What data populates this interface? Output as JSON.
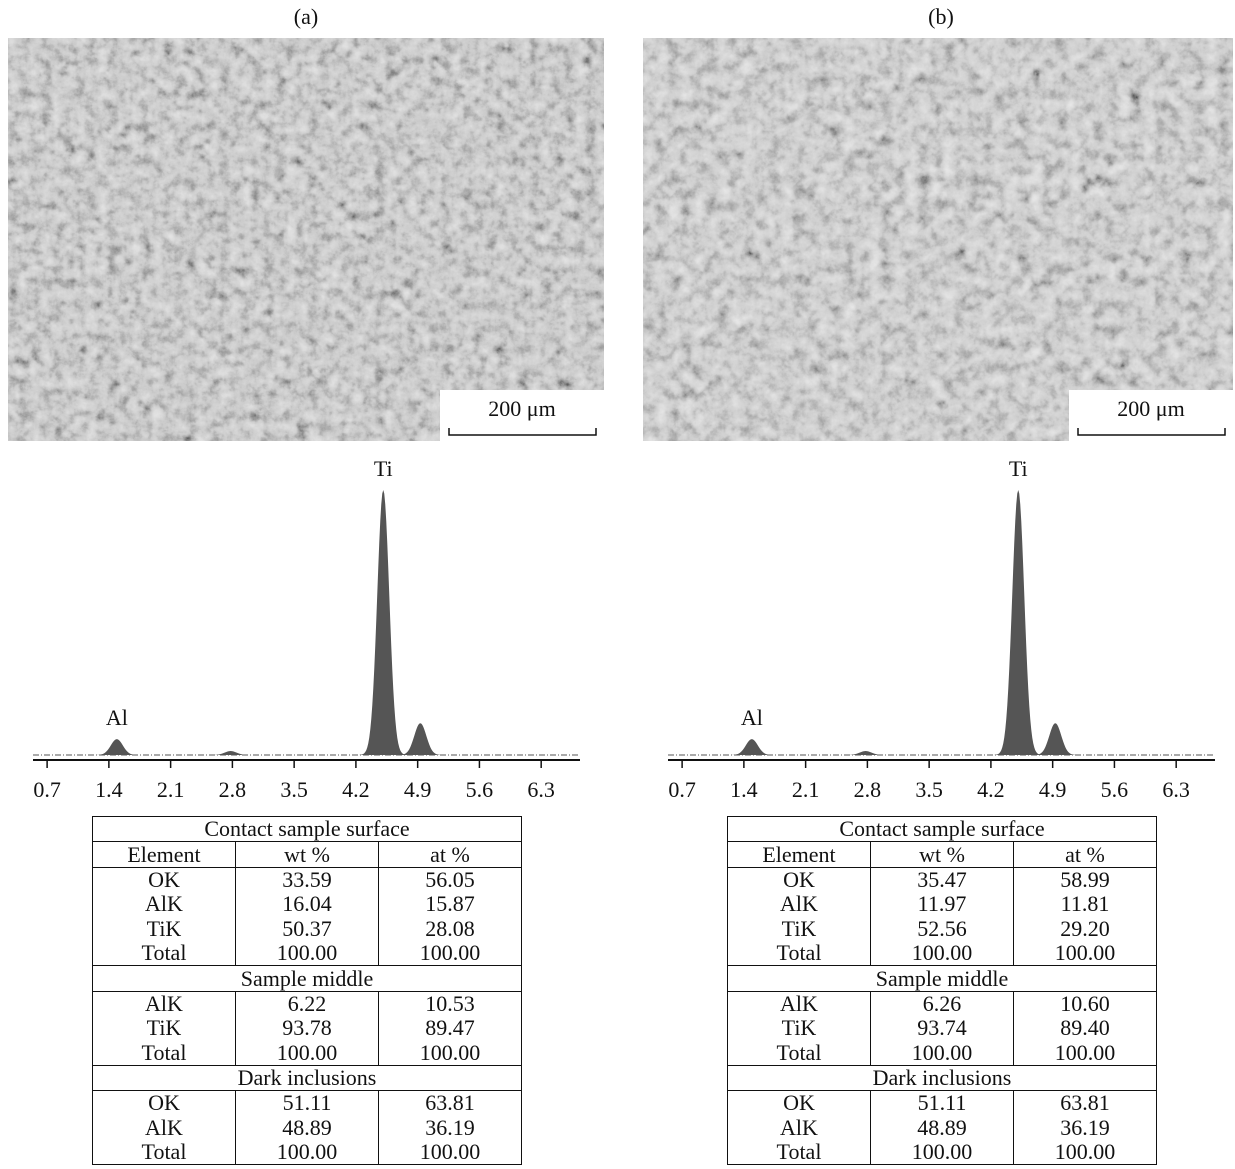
{
  "panels": [
    {
      "label": "(a)",
      "scale_bar": "200 μm",
      "spectrum": {
        "xlim": [
          0.54,
          6.74
        ],
        "xticks": [
          0.7,
          1.4,
          2.1,
          2.8,
          3.5,
          4.2,
          4.9,
          5.6,
          6.3
        ],
        "peaks": [
          {
            "label": "Al",
            "x": 1.49,
            "y": 6
          },
          {
            "label": null,
            "x": 2.78,
            "y": 1.5
          },
          {
            "label": "Ti",
            "x": 4.51,
            "y": 100
          },
          {
            "label": null,
            "x": 4.93,
            "y": 12
          }
        ]
      },
      "table": {
        "columns": [
          "Element",
          "wt %",
          "at %"
        ],
        "sections": [
          {
            "title": "Contact sample surface",
            "rows": [
              [
                "OK",
                "33.59",
                "56.05"
              ],
              [
                "AlK",
                "16.04",
                "15.87"
              ],
              [
                "TiK",
                "50.37",
                "28.08"
              ],
              [
                "Total",
                "100.00",
                "100.00"
              ]
            ]
          },
          {
            "title": "Sample middle",
            "rows": [
              [
                "AlK",
                "6.22",
                "10.53"
              ],
              [
                "TiK",
                "93.78",
                "89.47"
              ],
              [
                "Total",
                "100.00",
                "100.00"
              ]
            ]
          },
          {
            "title": "Dark inclusions",
            "rows": [
              [
                "OK",
                "51.11",
                "63.81"
              ],
              [
                "AlK",
                "48.89",
                "36.19"
              ],
              [
                "Total",
                "100.00",
                "100.00"
              ]
            ]
          }
        ]
      }
    },
    {
      "label": "(b)",
      "scale_bar": "200 μm",
      "spectrum": {
        "xlim": [
          0.54,
          6.74
        ],
        "xticks": [
          0.7,
          1.4,
          2.1,
          2.8,
          3.5,
          4.2,
          4.9,
          5.6,
          6.3
        ],
        "peaks": [
          {
            "label": "Al",
            "x": 1.49,
            "y": 6
          },
          {
            "label": null,
            "x": 2.78,
            "y": 1.5
          },
          {
            "label": "Ti",
            "x": 4.51,
            "y": 100
          },
          {
            "label": null,
            "x": 4.93,
            "y": 12
          }
        ]
      },
      "table": {
        "columns": [
          "Element",
          "wt %",
          "at %"
        ],
        "sections": [
          {
            "title": "Contact sample surface",
            "rows": [
              [
                "OK",
                "35.47",
                "58.99"
              ],
              [
                "AlK",
                "11.97",
                "11.81"
              ],
              [
                "TiK",
                "52.56",
                "29.20"
              ],
              [
                "Total",
                "100.00",
                "100.00"
              ]
            ]
          },
          {
            "title": "Sample middle",
            "rows": [
              [
                "AlK",
                "6.26",
                "10.60"
              ],
              [
                "TiK",
                "93.74",
                "89.40"
              ],
              [
                "Total",
                "100.00",
                "100.00"
              ]
            ]
          },
          {
            "title": "Dark inclusions",
            "rows": [
              [
                "OK",
                "51.11",
                "63.81"
              ],
              [
                "AlK",
                "48.89",
                "36.19"
              ],
              [
                "Total",
                "100.00",
                "100.00"
              ]
            ]
          }
        ]
      }
    }
  ]
}
